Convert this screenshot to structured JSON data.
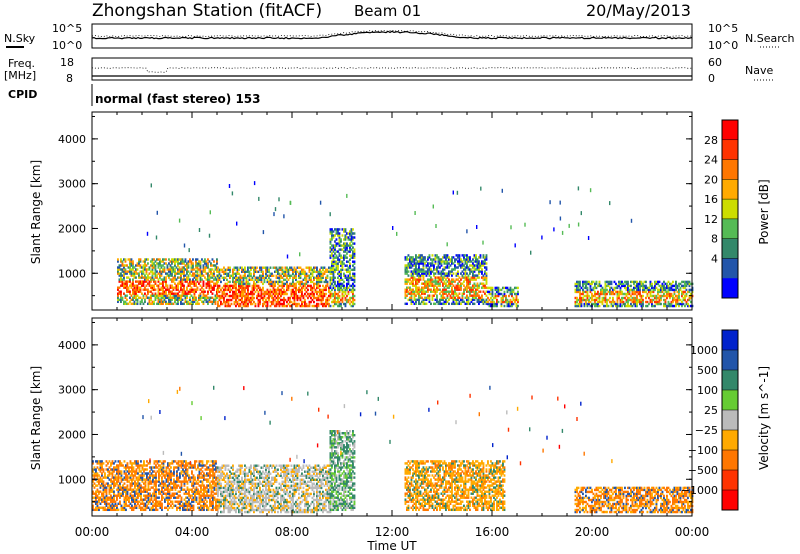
{
  "header": {
    "title": "Zhongshan Station (fitACF)",
    "beam": "Beam 01",
    "date": "20/May/2013"
  },
  "nsky_panel": {
    "left_label": "N.Sky",
    "left_ticks": [
      "10^5",
      "10^0"
    ],
    "right_label": "N.Search",
    "right_ticks": [
      "10^5",
      "10^0"
    ]
  },
  "freq_panel": {
    "left_label_1": "Freq.",
    "left_label_2": "[MHz]",
    "left_ticks": [
      "18",
      "8"
    ],
    "right_label": "Nave",
    "right_ticks": [
      "60",
      "0"
    ]
  },
  "cpid": {
    "label": "CPID",
    "text": "normal (fast stereo) 153"
  },
  "power_panel": {
    "ylabel": "Slant Range [km]",
    "yticks": [
      "4000",
      "3000",
      "2000",
      "1000"
    ],
    "colorbar": {
      "label": "Power [dB]",
      "ticks": [
        "28",
        "24",
        "20",
        "16",
        "12",
        "8",
        "4"
      ],
      "colors": [
        "#ff0000",
        "#ff3300",
        "#ff7700",
        "#ffaa00",
        "#ccdd00",
        "#55bb55",
        "#33886a",
        "#2255aa",
        "#0000ff"
      ]
    }
  },
  "velocity_panel": {
    "ylabel": "Slant Range [km]",
    "yticks": [
      "4000",
      "3000",
      "2000",
      "1000"
    ],
    "colorbar": {
      "label": "Velocity [m s^-1]",
      "ticks": [
        "1000",
        "500",
        "100",
        "25",
        "−25",
        "−100",
        "−500",
        "−1000"
      ],
      "colors": [
        "#0022cc",
        "#2255aa",
        "#33886a",
        "#66cc33",
        "#bbbbbb",
        "#ffaa00",
        "#ff7700",
        "#ff3300",
        "#ff0000"
      ]
    }
  },
  "xaxis": {
    "ticks": [
      "00:00",
      "04:00",
      "08:00",
      "12:00",
      "16:00",
      "20:00",
      "00:00"
    ],
    "label": "Time UT"
  },
  "chart_data": [
    {
      "type": "heatmap",
      "name": "power",
      "xlabel": "Time UT",
      "ylabel": "Slant Range [km]",
      "xlim": [
        0,
        24
      ],
      "ylim": [
        180,
        4600
      ],
      "colorbar_label": "Power [dB]",
      "colorbar_range": [
        0,
        30
      ],
      "regions": [
        {
          "t": [
            1.0,
            5.0
          ],
          "range": [
            300,
            1300
          ],
          "peak_range": [
            500,
            800
          ],
          "level": "high"
        },
        {
          "t": [
            5.0,
            9.5
          ],
          "range": [
            250,
            1150
          ],
          "peak_range": [
            250,
            700
          ],
          "level": "high"
        },
        {
          "t": [
            9.5,
            10.5
          ],
          "range": [
            250,
            2000
          ],
          "peak_range": [
            300,
            600
          ],
          "level": "medium"
        },
        {
          "t": [
            12.5,
            15.8
          ],
          "range": [
            300,
            1400
          ],
          "peak_range": [
            400,
            900
          ],
          "level": "medium"
        },
        {
          "t": [
            15.8,
            17.0
          ],
          "range": [
            250,
            700
          ],
          "peak_range": [
            300,
            500
          ],
          "level": "medium"
        },
        {
          "t": [
            19.3,
            24.0
          ],
          "range": [
            250,
            800
          ],
          "peak_range": [
            300,
            600
          ],
          "level": "medium"
        }
      ]
    },
    {
      "type": "heatmap",
      "name": "velocity",
      "xlabel": "Time UT",
      "ylabel": "Slant Range [km]",
      "xlim": [
        0,
        24
      ],
      "ylim": [
        180,
        4600
      ],
      "colorbar_label": "Velocity [m s^-1]",
      "colorbar_range": [
        -1000,
        1000
      ],
      "regions": [
        {
          "t": [
            0.0,
            5.0
          ],
          "range": [
            300,
            1400
          ],
          "dominant": "-100 to -500"
        },
        {
          "t": [
            5.0,
            9.5
          ],
          "range": [
            250,
            1300
          ],
          "dominant": "-25 to 25"
        },
        {
          "t": [
            9.5,
            10.5
          ],
          "range": [
            300,
            2100
          ],
          "dominant": "100"
        },
        {
          "t": [
            12.5,
            16.5
          ],
          "range": [
            300,
            1400
          ],
          "dominant": "-100"
        },
        {
          "t": [
            19.3,
            24.0
          ],
          "range": [
            250,
            800
          ],
          "dominant": "-100 to -500"
        }
      ]
    }
  ]
}
